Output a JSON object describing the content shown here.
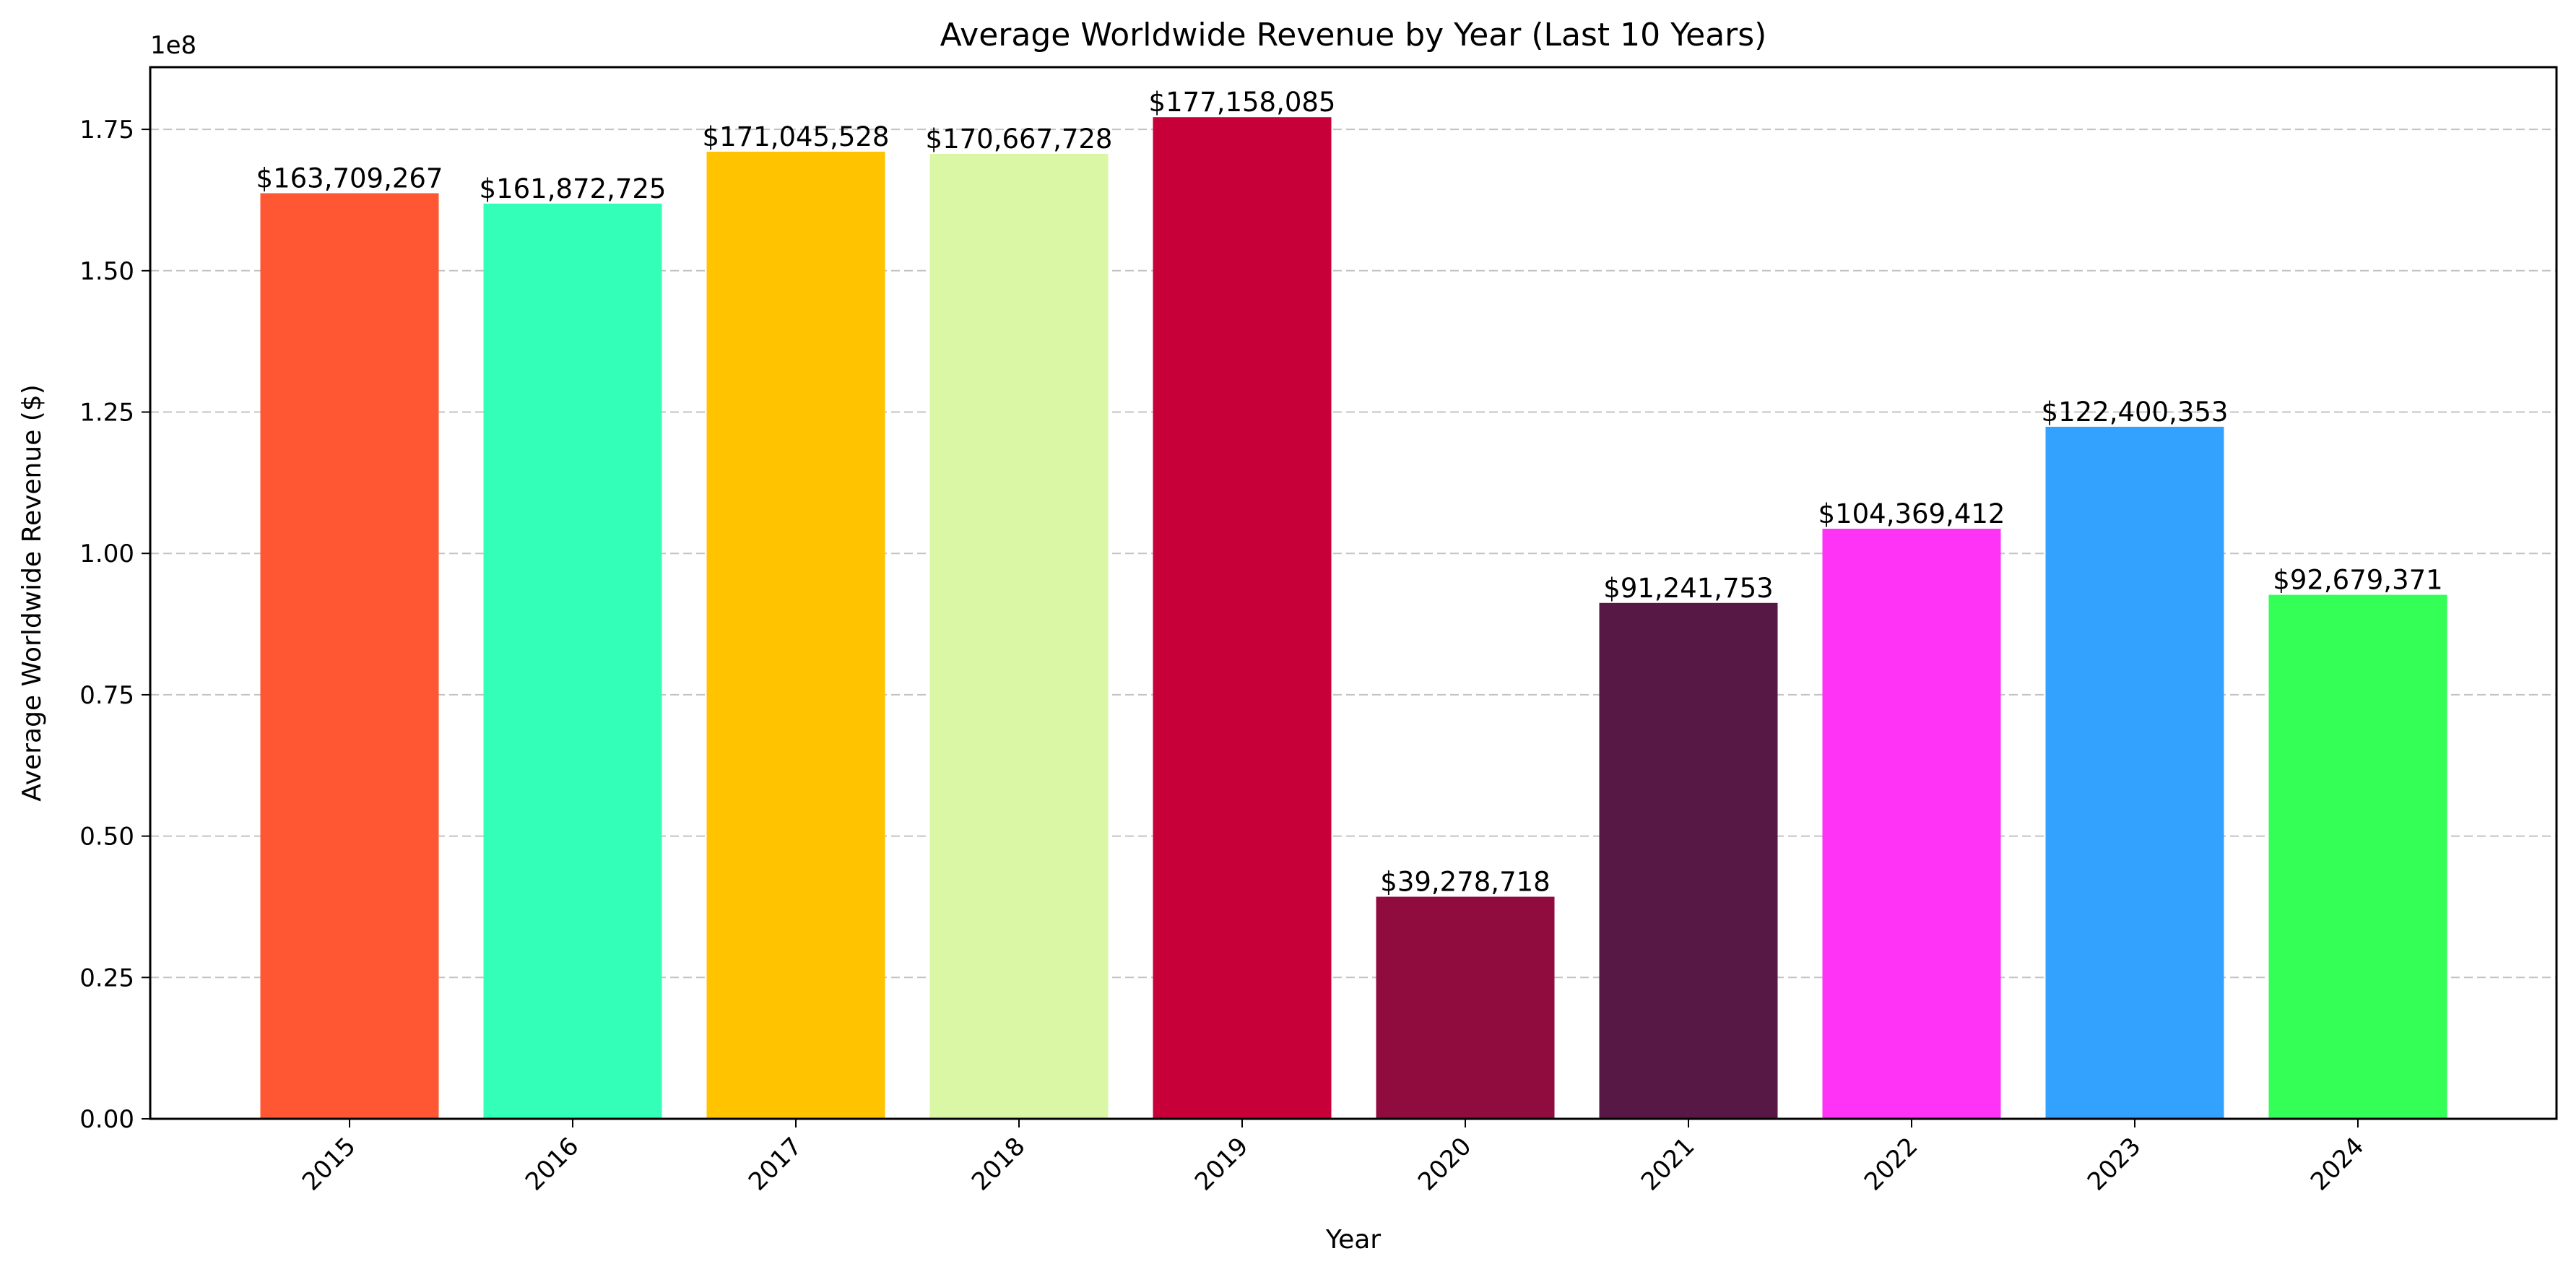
{
  "chart_data": {
    "type": "bar",
    "title": "Average Worldwide Revenue by Year (Last 10 Years)",
    "xlabel": "Year",
    "ylabel": "Average Worldwide Revenue ($)",
    "y_offset_label": "1e8",
    "categories": [
      "2015",
      "2016",
      "2017",
      "2018",
      "2019",
      "2020",
      "2021",
      "2022",
      "2023",
      "2024"
    ],
    "values": [
      163709267,
      161872725,
      171045528,
      170667728,
      177158085,
      39278718,
      91241753,
      104369412,
      122400353,
      92679371
    ],
    "data_labels": [
      "$163,709,267",
      "$161,872,725",
      "$171,045,528",
      "$170,667,728",
      "$177,158,085",
      "$39,278,718",
      "$91,241,753",
      "$104,369,412",
      "$122,400,353",
      "$92,679,371"
    ],
    "colors": [
      "#ff5733",
      "#33ffb8",
      "#ffc300",
      "#daf7a6",
      "#c70039",
      "#900c3f",
      "#581845",
      "#ff33f6",
      "#33a2ff",
      "#33ff57"
    ],
    "ylim": [
      0,
      186000000
    ],
    "yticks": [
      0,
      25000000,
      50000000,
      75000000,
      100000000,
      125000000,
      150000000,
      175000000
    ],
    "ytick_labels": [
      "0.00",
      "0.25",
      "0.50",
      "0.75",
      "1.00",
      "1.25",
      "1.50",
      "1.75"
    ],
    "grid": "y-dashed",
    "xtick_rotation": 45
  }
}
